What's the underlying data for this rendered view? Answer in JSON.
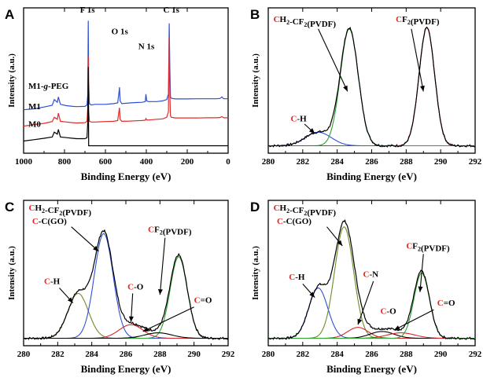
{
  "chart_data": [
    {
      "panel": "A",
      "type": "line",
      "xlabel": "Binding Energy (eV)",
      "ylabel": "Intensity (a.u.)",
      "xlim": [
        1000,
        0
      ],
      "ylim": [
        0,
        100
      ],
      "x_ticks": [
        1000,
        800,
        600,
        400,
        200,
        0
      ],
      "series": [
        {
          "name": "M1-g-PEG",
          "color": "#2e4fd6",
          "x": [
            1000,
            950,
            900,
            860,
            850,
            835,
            830,
            820,
            790,
            760,
            740,
            700,
            690,
            686,
            684,
            682,
            678,
            670,
            650,
            600,
            560,
            540,
            533,
            531,
            528,
            520,
            480,
            450,
            420,
            405,
            402,
            398,
            390,
            370,
            350,
            320,
            300,
            292,
            288,
            285,
            282,
            278,
            260,
            240,
            200,
            150,
            100,
            60,
            40,
            30,
            25,
            20,
            10,
            0
          ],
          "y": [
            28.5,
            29.2,
            30.5,
            31.8,
            36,
            34,
            38,
            32.5,
            31.5,
            31,
            30.8,
            31,
            32,
            40,
            94,
            50,
            33,
            32,
            32.5,
            32.5,
            33,
            33.5,
            42,
            45,
            35,
            33,
            33.5,
            33.8,
            34,
            34.5,
            40,
            35,
            34.5,
            34.5,
            34.5,
            35,
            36,
            40,
            92,
            60,
            38,
            37,
            36.5,
            36.5,
            36.5,
            36.6,
            36.6,
            36.6,
            36.8,
            38,
            37,
            36.6,
            36.6,
            36.6
          ]
        },
        {
          "name": "M1",
          "color": "#e32a2a",
          "x": [
            1000,
            950,
            900,
            860,
            850,
            835,
            830,
            820,
            790,
            760,
            740,
            700,
            690,
            686,
            684,
            682,
            678,
            670,
            650,
            600,
            560,
            540,
            533,
            531,
            528,
            520,
            480,
            450,
            420,
            405,
            402,
            398,
            390,
            370,
            350,
            320,
            300,
            292,
            288,
            285,
            282,
            278,
            260,
            240,
            200,
            150,
            100,
            60,
            40,
            30,
            25,
            20,
            10,
            0
          ],
          "y": [
            16.5,
            17.5,
            18.5,
            19.8,
            23,
            21.5,
            26,
            20,
            19.5,
            19,
            18.8,
            19,
            20,
            30,
            68,
            28,
            20,
            19.5,
            19.5,
            19.8,
            20,
            20.5,
            28,
            30,
            21.5,
            20,
            20.2,
            20.4,
            20.6,
            20.8,
            22,
            21,
            21,
            21.2,
            21.5,
            21.8,
            23,
            27,
            82,
            40,
            24,
            23,
            22.5,
            22.5,
            22.5,
            22.5,
            22.6,
            22.6,
            22.8,
            23.5,
            22.8,
            22.6,
            22.6,
            22.6
          ]
        },
        {
          "name": "M0",
          "color": "#000000",
          "x": [
            1000,
            950,
            900,
            860,
            850,
            835,
            830,
            820,
            790,
            760,
            740,
            700,
            690,
            686,
            684,
            682,
            678,
            670,
            650,
            600,
            560,
            540,
            533,
            531,
            528,
            520,
            480,
            450,
            420,
            405,
            402,
            398,
            390,
            370,
            350,
            320,
            300,
            292,
            288,
            285,
            282,
            278,
            260,
            240,
            200,
            150,
            100,
            60,
            40,
            30,
            25,
            20,
            10,
            0
          ],
          "y": [
            5.5,
            6.5,
            7.5,
            8.5,
            12,
            10.5,
            14,
            8.5,
            8,
            7.5,
            7.2,
            7.2,
            8,
            20,
            60,
            2,
            2,
            2,
            2,
            2,
            2,
            2,
            2,
            2,
            2,
            2,
            2,
            2,
            2,
            2,
            2,
            2,
            2,
            2,
            2,
            2,
            2,
            2,
            2,
            2,
            2,
            2,
            2,
            2,
            2,
            2,
            2,
            2,
            2,
            2,
            2,
            2,
            2,
            2
          ]
        }
      ],
      "annotations": [
        "F 1s",
        "O 1s",
        "N 1s",
        "C 1s"
      ],
      "series_labels": [
        "M1-g-PEG",
        "M1",
        "M0"
      ]
    },
    {
      "panel": "B",
      "type": "line",
      "xlabel": "Binding Energy (eV)",
      "ylabel": "Intensity (a.u.)",
      "xlim": [
        280,
        292
      ],
      "ylim": [
        0,
        100
      ],
      "x_ticks": [
        280,
        282,
        284,
        286,
        288,
        290,
        292
      ],
      "peaks": [
        {
          "label": "C-H",
          "center": 282.9,
          "height": 10,
          "width": 0.75,
          "color": "#2e4fd6"
        },
        {
          "label": "CH2-CF2(PVDF)",
          "center": 284.7,
          "height": 86,
          "width": 0.52,
          "color": "#2ca02c"
        },
        {
          "label": "CF2(PVDF)",
          "center": 289.2,
          "height": 87,
          "width": 0.45,
          "color": "#d62728"
        }
      ],
      "annotations": [
        "CH2-CF2(PVDF)",
        "CF2(PVDF)",
        "C-H"
      ]
    },
    {
      "panel": "C",
      "type": "line",
      "xlabel": "Binding Energy (eV)",
      "ylabel": "Intensity (a.u.)",
      "xlim": [
        280,
        292
      ],
      "ylim": [
        0,
        100
      ],
      "x_ticks": [
        280,
        282,
        284,
        286,
        288,
        290,
        292
      ],
      "peaks": [
        {
          "label": "C-H",
          "center": 283.2,
          "height": 33,
          "width": 0.6,
          "color": "#6b8e23"
        },
        {
          "label": "CH2-CF2(PVDF) / C-C(GO)",
          "center": 284.7,
          "height": 77,
          "width": 0.55,
          "color": "#2e4fd6"
        },
        {
          "label": "C-O",
          "center": 286.3,
          "height": 10,
          "width": 0.7,
          "color": "#d62728"
        },
        {
          "label": "CF2(PVDF)",
          "center": 289.1,
          "height": 60,
          "width": 0.5,
          "color": "#2ca02c"
        },
        {
          "label": "C=O",
          "center": 287.9,
          "height": 4,
          "width": 0.8,
          "color": "#000000"
        }
      ],
      "annotations": [
        "CH2-CF2(PVDF)",
        "C-C(GO)",
        "CF2(PVDF)",
        "C-H",
        "C-O",
        "C=O"
      ]
    },
    {
      "panel": "D",
      "type": "line",
      "xlabel": "Binding Energy (eV)",
      "ylabel": "Intensity (a.u.)",
      "xlim": [
        280,
        292
      ],
      "ylim": [
        0,
        100
      ],
      "x_ticks": [
        280,
        282,
        284,
        286,
        288,
        290,
        292
      ],
      "peaks": [
        {
          "label": "C-H",
          "center": 282.9,
          "height": 37,
          "width": 0.55,
          "color": "#2e4fd6"
        },
        {
          "label": "CH2-CF2(PVDF) / C-C(GO)",
          "center": 284.4,
          "height": 82,
          "width": 0.55,
          "color": "#6b8e23"
        },
        {
          "label": "C-N",
          "center": 285.2,
          "height": 8,
          "width": 0.6,
          "color": "#d62728"
        },
        {
          "label": "C-O",
          "center": 286.6,
          "height": 5,
          "width": 0.7,
          "color": "#000000"
        },
        {
          "label": "C=O",
          "center": 287.7,
          "height": 4,
          "width": 0.8,
          "color": "#d62728"
        },
        {
          "label": "CF2(PVDF)",
          "center": 288.9,
          "height": 48,
          "width": 0.45,
          "color": "#2ca02c"
        }
      ],
      "annotations": [
        "CH2-CF2(PVDF)",
        "C-C(GO)",
        "CF2(PVDF)",
        "C-H",
        "C-N",
        "C-O",
        "C=O"
      ]
    }
  ],
  "panel_letters": [
    "A",
    "B",
    "C",
    "D"
  ],
  "colors": {
    "red_prefix": "#e8221c",
    "envelope": "#000000",
    "baseline": "#2e4fd6"
  }
}
